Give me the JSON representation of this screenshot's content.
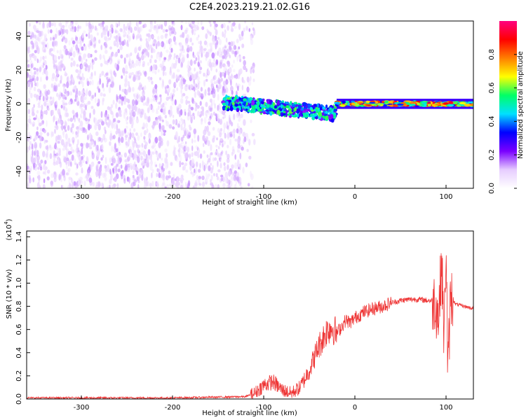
{
  "title": "C2E4.2023.219.21.02.G16",
  "colors": {
    "snr_line": "#ee3333",
    "colormap": [
      "#ffffff",
      "#e6ccff",
      "#7a00ff",
      "#0000ff",
      "#00e0ff",
      "#00ff66",
      "#ffff00",
      "#ff7f00",
      "#ff0000",
      "#ff0080"
    ]
  },
  "chart_data": [
    {
      "type": "heatmap",
      "title": "C2E4.2023.219.21.02.G16",
      "xlabel": "Height of straight line (km)",
      "ylabel": "Frequency (Hz)",
      "xlim": [
        -360,
        130
      ],
      "ylim": [
        -50,
        49
      ],
      "xticks": [
        -300,
        -200,
        -100,
        0,
        100
      ],
      "xtick_labels": [
        "-300",
        "-200",
        "-100",
        "0",
        "100"
      ],
      "yticks": [
        -40,
        -20,
        0,
        20,
        40
      ],
      "ytick_labels": [
        "-40",
        "-20",
        "0",
        "20",
        "40"
      ],
      "grid": false,
      "colorbar": {
        "label": "Normalized spectral amplitude",
        "range": [
          0,
          1
        ],
        "ticks": [
          0.0,
          0.2,
          0.4,
          0.6,
          0.8
        ],
        "tick_labels": [
          "0.0",
          "0.2",
          "0.4",
          "0.6",
          "0.8"
        ]
      },
      "regions": [
        {
          "x_range": [
            -360,
            -110
          ],
          "freq_range": [
            -50,
            49
          ],
          "amplitude": [
            0.05,
            0.15
          ],
          "description": "broadband noise"
        },
        {
          "x_range": [
            -145,
            -20
          ],
          "freq_center": [
            1,
            -6
          ],
          "freq_halfwidth": 4,
          "amplitude": [
            0.2,
            0.6
          ]
        },
        {
          "x_range": [
            -20,
            130
          ],
          "freq_center": 0,
          "freq_halfwidth": 2,
          "amplitude": [
            0.3,
            0.95
          ]
        }
      ]
    },
    {
      "type": "line",
      "xlabel": "Height of straight line (km)",
      "ylabel": "SNR (10 * v/v)",
      "y_scale_label": "(x10",
      "y_scale_exponent": "4",
      "xlim": [
        -360,
        130
      ],
      "ylim": [
        0,
        1.45
      ],
      "xticks": [
        -300,
        -200,
        -100,
        0,
        100
      ],
      "xtick_labels": [
        "-300",
        "-200",
        "-100",
        "0",
        "100"
      ],
      "yticks": [
        0.0,
        0.2,
        0.4,
        0.6,
        0.8,
        1.0,
        1.2,
        1.4
      ],
      "ytick_labels": [
        "0.0",
        "0.2",
        "0.4",
        "0.6",
        "0.8",
        "1.0",
        "1.2",
        "1.4"
      ],
      "grid": false,
      "series": [
        {
          "x": [
            -360,
            -300,
            -200,
            -120,
            -110,
            -100,
            -90,
            -80,
            -70,
            -60,
            -50,
            -40,
            -30,
            -25,
            -20,
            -15,
            -10,
            -5,
            0,
            10,
            20,
            30,
            40,
            50,
            60,
            70,
            80,
            88,
            92,
            95,
            98,
            100,
            102,
            105,
            110,
            120,
            130
          ],
          "y": [
            0.01,
            0.01,
            0.01,
            0.02,
            0.05,
            0.12,
            0.15,
            0.08,
            0.05,
            0.1,
            0.25,
            0.45,
            0.6,
            0.62,
            0.57,
            0.62,
            0.68,
            0.66,
            0.7,
            0.75,
            0.78,
            0.8,
            0.83,
            0.85,
            0.86,
            0.86,
            0.85,
            0.85,
            0.7,
            1.2,
            0.5,
            1.4,
            0.2,
            0.9,
            0.82,
            0.8,
            0.78
          ]
        }
      ]
    }
  ]
}
